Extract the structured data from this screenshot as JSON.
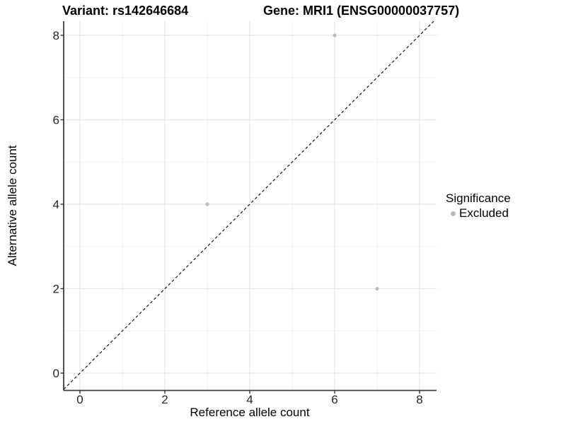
{
  "chart_data": {
    "type": "scatter",
    "title_left": "Variant: rs142646684",
    "title_right": "Gene: MRI1 (ENSG00000037757)",
    "xlabel": "Reference allele count",
    "ylabel": "Alternative allele count",
    "xlim": [
      -0.4,
      8.4
    ],
    "ylim": [
      -0.4,
      8.4
    ],
    "x_ticks": [
      0,
      2,
      4,
      6,
      8
    ],
    "y_ticks": [
      0,
      2,
      4,
      6,
      8
    ],
    "x_minor": [
      1,
      3,
      5,
      7
    ],
    "y_minor": [
      1,
      3,
      5,
      7
    ],
    "grid": "major and minor gridlines on white panel",
    "series": [
      {
        "name": "Excluded",
        "color": "#bcbcbc",
        "points": [
          {
            "x": 6,
            "y": 8
          },
          {
            "x": 3,
            "y": 4
          },
          {
            "x": 7,
            "y": 2
          }
        ]
      }
    ],
    "reference_line": {
      "kind": "identity y=x",
      "style": "dashed",
      "color": "#000000"
    },
    "legend": {
      "position": "right",
      "title": "Significance",
      "items": [
        {
          "label": "Excluded",
          "color": "#bcbcbc"
        }
      ]
    }
  },
  "style": {
    "background": "#ffffff",
    "grid_major": "#e6e6e6",
    "grid_minor": "#f2f2f2",
    "axis_line": "#3d3d3d",
    "tick_color": "#333333",
    "point_color": "#bcbcbc",
    "point_radius": 2.6
  }
}
